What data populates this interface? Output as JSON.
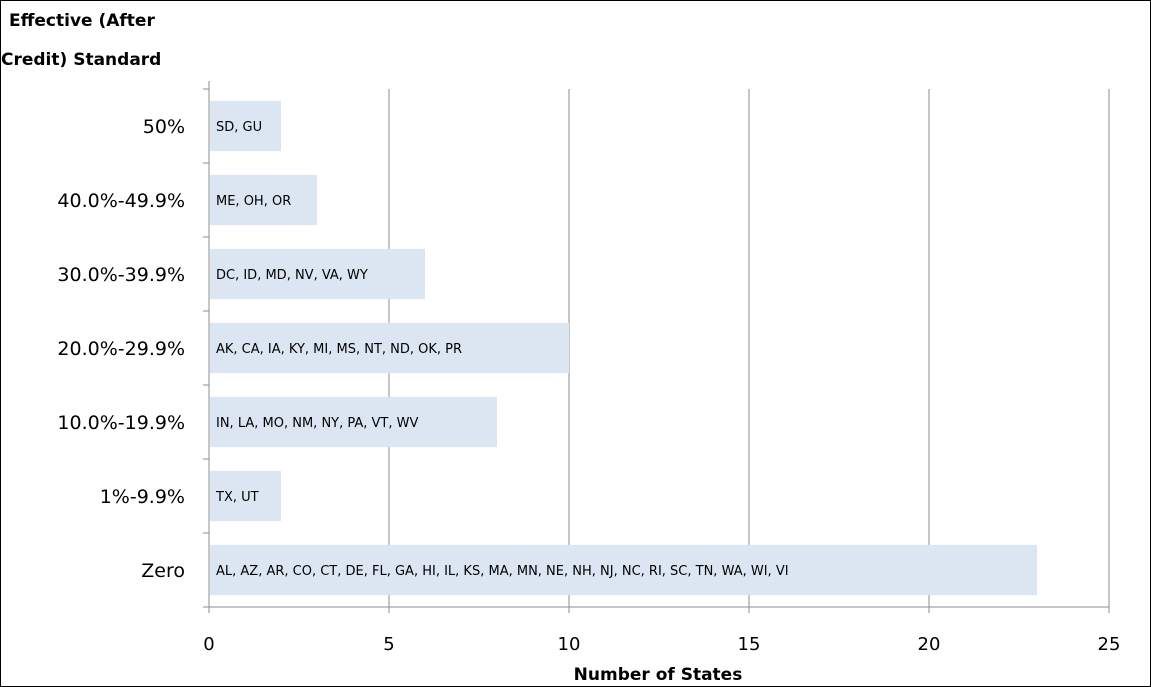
{
  "chart_data": {
    "type": "bar",
    "orientation": "horizontal",
    "ylabel_lines": [
      "Effective (After",
      "Credit) Standard"
    ],
    "xlabel": "Number of States",
    "xlim": [
      0,
      25
    ],
    "xticks": [
      0,
      5,
      10,
      15,
      20,
      25
    ],
    "grid": "vertical",
    "bar_color": "#dce6f2",
    "categories": [
      "50%",
      "40.0%-49.9%",
      "30.0%-39.9%",
      "20.0%-29.9%",
      "10.0%-19.9%",
      "1%-9.9%",
      "Zero"
    ],
    "values": [
      2,
      3,
      6,
      10,
      8,
      2,
      23
    ],
    "data_labels": [
      "SD, GU",
      "ME, OH, OR",
      "DC, ID, MD, NV, VA, WY",
      "AK, CA, IA, KY, MI, MS, NT, ND, OK, PR",
      "IN, LA, MO, NM, NY, PA, VT, WV",
      "TX, UT",
      "AL, AZ, AR, CO, CT, DE, FL, GA, HI, IL, KS, MA, MN, NE, NH, NJ, NC, RI, SC, TN, WA, WI, VI"
    ]
  }
}
